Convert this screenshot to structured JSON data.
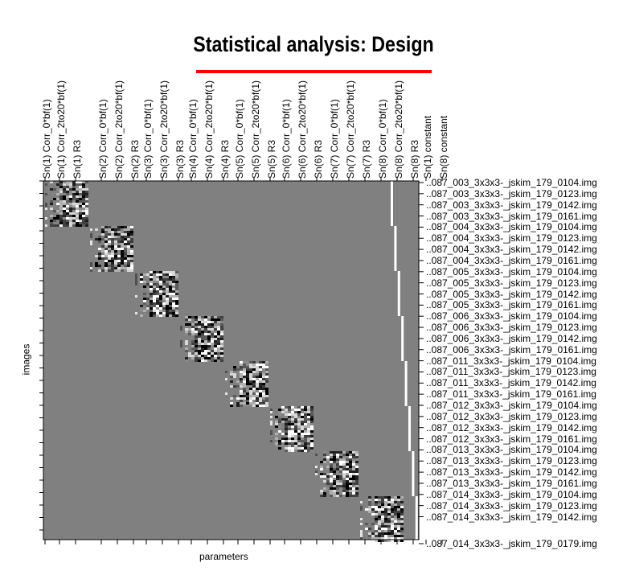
{
  "title": "Statistical analysis: Design",
  "accent_color": "#ff0000",
  "x_axis_label": "parameters",
  "y_axis_label": "images",
  "columns": [
    "Sn(1) Corr_0*bf(1)",
    "Sn(1) Corr_2to20*bf(1)",
    "Sn(1) R3",
    "Sn(2) Corr_0*bf(1)",
    "Sn(2) Corr_2to20*bf(1)",
    "Sn(2) R3",
    "Sn(3) Corr_0*bf(1)",
    "Sn(3) Corr_2to20*bf(1)",
    "Sn(3) R3",
    "Sn(4) Corr_0*bf(1)",
    "Sn(4) Corr_2to20*bf(1)",
    "Sn(4) R3",
    "Sn(5) Corr_0*bf(1)",
    "Sn(5) Corr_2to20*bf(1)",
    "Sn(5) R3",
    "Sn(6) Corr_0*bf(1)",
    "Sn(6) Corr_2to20*bf(1)",
    "Sn(6) R3",
    "Sn(7) Corr_0*bf(1)",
    "Sn(7) Corr_2to20*bf(1)",
    "Sn(7) R3",
    "Sn(8) Corr_0*bf(1)",
    "Sn(8) Corr_2to20*bf(1)",
    "Sn(8) R3",
    "Sn(1) constant",
    "Sn(8) constant"
  ],
  "rows": [
    "..087_003_3x3x3-_jskim_179_0104.img",
    "..087_003_3x3x3-_jskim_179_0123.img",
    "..087_003_3x3x3-_jskim_179_0142.img",
    "..087_003_3x3x3-_jskim_179_0161.img",
    "..087_004_3x3x3-_jskim_179_0104.img",
    "..087_004_3x3x3-_jskim_179_0123.img",
    "..087_004_3x3x3-_jskim_179_0142.img",
    "..087_004_3x3x3-_jskim_179_0161.img",
    "..087_005_3x3x3-_jskim_179_0104.img",
    "..087_005_3x3x3-_jskim_179_0123.img",
    "..087_005_3x3x3-_jskim_179_0142.img",
    "..087_005_3x3x3-_jskim_179_0161.img",
    "..087_006_3x3x3-_jskim_179_0104.img",
    "..087_006_3x3x3-_jskim_179_0123.img",
    "..087_006_3x3x3-_jskim_179_0142.img",
    "..087_006_3x3x3-_jskim_179_0161.img",
    "..087_011_3x3x3-_jskim_179_0104.img",
    "..087_011_3x3x3-_jskim_179_0123.img",
    "..087_011_3x3x3-_jskim_179_0142.img",
    "..087_011_3x3x3-_jskim_179_0161.img",
    "..087_012_3x3x3-_jskim_179_0104.img",
    "..087_012_3x3x3-_jskim_179_0123.img",
    "..087_012_3x3x3-_jskim_179_0142.img",
    "..087_012_3x3x3-_jskim_179_0161.img",
    "..087_013_3x3x3-_jskim_179_0104.img",
    "..087_013_3x3x3-_jskim_179_0123.img",
    "..087_013_3x3x3-_jskim_179_0142.img",
    "..087_013_3x3x3-_jskim_179_0161.img",
    "..087_014_3x3x3-_jskim_179_0104.img",
    "..087_014_3x3x3-_jskim_179_0123.img",
    "..087_014_3x3x3-_jskim_179_0142.img",
    "..087_014_3x3x3-_jskim_179_0179.img"
  ]
}
